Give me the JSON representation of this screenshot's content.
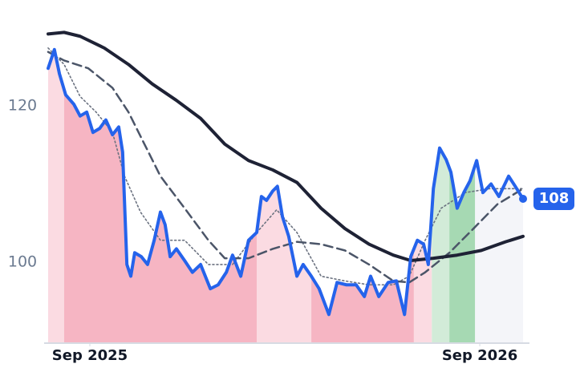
{
  "chart_data": {
    "type": "line",
    "xlim": [
      2025.56,
      2026.778
    ],
    "ylim": [
      89.74,
      131.49
    ],
    "yticks": [
      100,
      120
    ],
    "xticks": [
      {
        "value": 2025.667,
        "label": "Sep 2025"
      },
      {
        "value": 2026.667,
        "label": "Sep 2026"
      }
    ],
    "x": [
      2025.56,
      2025.576,
      2025.589,
      2025.605,
      2025.626,
      2025.642,
      2025.659,
      2025.675,
      2025.692,
      2025.708,
      2025.725,
      2025.741,
      2025.751,
      2025.762,
      2025.772,
      2025.782,
      2025.799,
      2025.815,
      2025.832,
      2025.848,
      2025.86,
      2025.873,
      2025.889,
      2025.91,
      2025.93,
      2025.951,
      2025.976,
      2025.996,
      2026.017,
      2026.033,
      2026.054,
      2026.074,
      2026.095,
      2026.107,
      2026.12,
      2026.136,
      2026.148,
      2026.161,
      2026.177,
      2026.198,
      2026.214,
      2026.235,
      2026.255,
      2026.28,
      2026.301,
      2026.325,
      2026.35,
      2026.371,
      2026.387,
      2026.408,
      2026.432,
      2026.453,
      2026.474,
      2026.49,
      2026.507,
      2026.523,
      2026.535,
      2026.548,
      2026.564,
      2026.581,
      2026.593,
      2026.609,
      2026.626,
      2026.642,
      2026.659,
      2026.675,
      2026.696,
      2026.716,
      2026.741,
      2026.758,
      2026.778
    ],
    "series": [
      {
        "color": "#2563eb",
        "style": "solid",
        "width": 4,
        "values": [
          124.8,
          127.2,
          124.1,
          121.4,
          120.2,
          118.7,
          119.2,
          116.6,
          117.1,
          118.2,
          116.3,
          117.3,
          114.1,
          99.7,
          98.2,
          101.2,
          100.7,
          99.7,
          102.8,
          106.4,
          104.8,
          100.7,
          101.7,
          100.2,
          98.7,
          99.7,
          96.6,
          97.1,
          98.7,
          100.9,
          98.2,
          102.8,
          103.8,
          108.4,
          107.9,
          109.1,
          109.7,
          105.8,
          103.3,
          98.2,
          99.7,
          98.2,
          96.6,
          93.3,
          97.4,
          97.1,
          97.1,
          95.6,
          98.2,
          95.6,
          97.4,
          97.6,
          93.3,
          100.7,
          102.8,
          102.3,
          99.7,
          109.4,
          114.6,
          113.1,
          111.5,
          106.9,
          108.9,
          110.4,
          113.0,
          108.9,
          110.0,
          108.4,
          111.0,
          109.7,
          108.1
        ]
      },
      {
        "color": "#1e2235",
        "style": "solid",
        "width": 4,
        "x": [
          2025.56,
          2025.601,
          2025.642,
          2025.704,
          2025.766,
          2025.827,
          2025.889,
          2025.951,
          2026.013,
          2026.074,
          2026.136,
          2026.198,
          2026.26,
          2026.321,
          2026.383,
          2026.445,
          2026.49,
          2026.548,
          2026.609,
          2026.671,
          2026.733,
          2026.778
        ],
        "values": [
          129.2,
          129.4,
          128.9,
          127.4,
          125.3,
          122.8,
          120.7,
          118.4,
          115.1,
          113.0,
          111.8,
          110.2,
          106.9,
          104.3,
          102.3,
          100.9,
          100.2,
          100.5,
          100.9,
          101.5,
          102.6,
          103.3
        ]
      },
      {
        "color": "#4b5568",
        "style": "dashed",
        "width": 2.5,
        "x": [
          2025.56,
          2025.601,
          2025.663,
          2025.725,
          2025.766,
          2025.807,
          2025.848,
          2025.91,
          2025.971,
          2026.013,
          2026.074,
          2026.136,
          2026.198,
          2026.26,
          2026.321,
          2026.383,
          2026.445,
          2026.486,
          2026.527,
          2026.589,
          2026.651,
          2026.712,
          2026.778
        ],
        "values": [
          126.9,
          125.8,
          124.8,
          122.3,
          119.2,
          115.1,
          111.0,
          106.9,
          102.8,
          100.5,
          100.5,
          101.7,
          102.6,
          102.3,
          101.5,
          99.7,
          97.6,
          97.4,
          98.7,
          101.2,
          104.3,
          107.4,
          109.4
        ]
      },
      {
        "color": "#6b7280",
        "style": "dotted",
        "width": 1.6,
        "x": [
          2025.56,
          2025.601,
          2025.642,
          2025.683,
          2025.725,
          2025.756,
          2025.797,
          2025.848,
          2025.91,
          2025.971,
          2026.033,
          2026.095,
          2026.146,
          2026.198,
          2026.26,
          2026.321,
          2026.383,
          2026.445,
          2026.486,
          2026.527,
          2026.568,
          2026.63,
          2026.692,
          2026.778
        ],
        "values": [
          127.4,
          125.3,
          121.2,
          119.2,
          116.6,
          111.0,
          106.4,
          102.8,
          102.8,
          99.7,
          99.7,
          103.8,
          106.7,
          103.8,
          98.2,
          97.6,
          97.1,
          97.1,
          98.2,
          102.8,
          106.9,
          108.9,
          109.4,
          109.4
        ]
      }
    ],
    "bands": [
      {
        "start": 2025.56,
        "end": 2025.601,
        "color": "#fbdbe2"
      },
      {
        "start": 2025.601,
        "end": 2026.095,
        "color": "#f6b5c3"
      },
      {
        "start": 2026.095,
        "end": 2026.235,
        "color": "#fbdbe2"
      },
      {
        "start": 2026.235,
        "end": 2026.498,
        "color": "#f6b5c3"
      },
      {
        "start": 2026.498,
        "end": 2026.544,
        "color": "#fbdbe2"
      },
      {
        "start": 2026.544,
        "end": 2026.589,
        "color": "#d2ebd8"
      },
      {
        "start": 2026.589,
        "end": 2026.655,
        "color": "#a6d9b3"
      },
      {
        "start": 2026.655,
        "end": 2026.778,
        "color": "#f4f5f9"
      }
    ],
    "annotations": [
      {
        "x": 2026.778,
        "y": 108.1,
        "text": "108",
        "color": "#2563eb"
      }
    ]
  }
}
